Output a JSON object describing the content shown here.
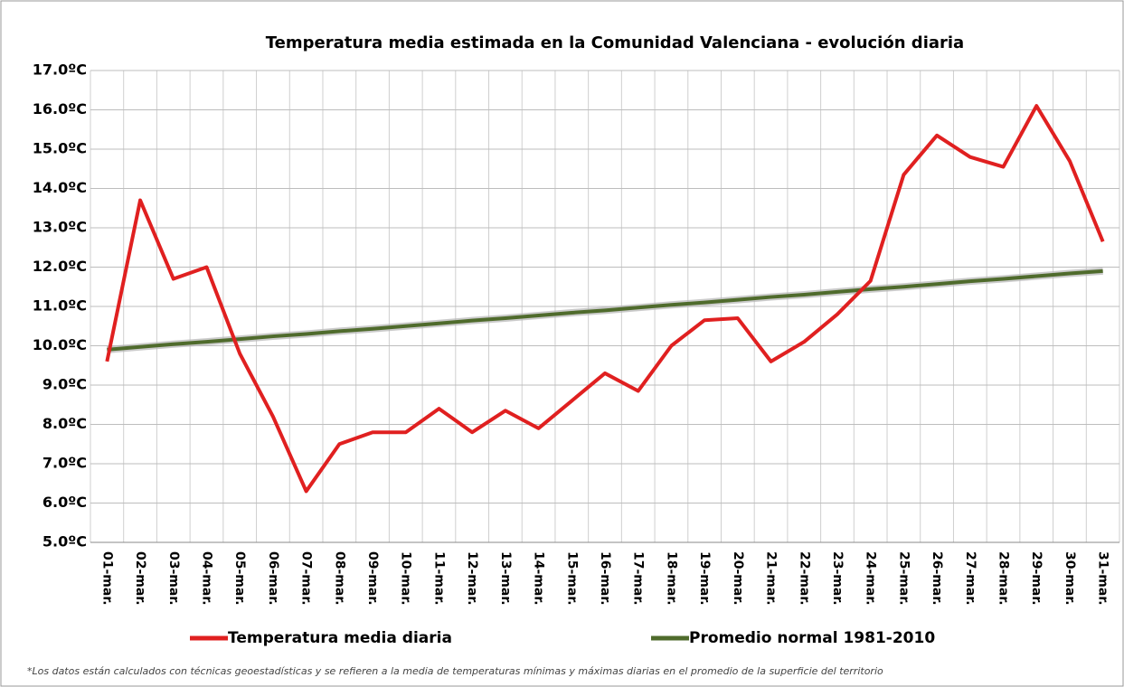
{
  "chart_data": {
    "type": "line",
    "title": "Temperatura media estimada en la Comunidad Valenciana - evolución diaria",
    "footnote": "*Los datos están calculados con técnicas geoestadísticas y se refieren a la media de temperaturas mínimas y máximas diarias en el promedio de la superficie del territorio",
    "categories": [
      "01-mar.",
      "02-mar.",
      "03-mar.",
      "04-mar.",
      "05-mar.",
      "06-mar.",
      "07-mar.",
      "08-mar.",
      "09-mar.",
      "10-mar.",
      "11-mar.",
      "12-mar.",
      "13-mar.",
      "14-mar.",
      "15-mar.",
      "16-mar.",
      "17-mar.",
      "18-mar.",
      "19-mar.",
      "20-mar.",
      "21-mar.",
      "22-mar.",
      "23-mar.",
      "24-mar.",
      "25-mar.",
      "26-mar.",
      "27-mar.",
      "28-mar.",
      "29-mar.",
      "30-mar.",
      "31-mar."
    ],
    "series": [
      {
        "name": "Temperatura media diaria",
        "color": "#e02020",
        "values": [
          9.6,
          13.7,
          11.7,
          12.0,
          9.8,
          8.2,
          6.3,
          7.5,
          7.8,
          7.8,
          8.4,
          7.8,
          8.35,
          7.9,
          8.6,
          9.3,
          8.85,
          10.0,
          10.65,
          10.7,
          9.6,
          10.1,
          10.8,
          11.65,
          14.35,
          15.35,
          14.8,
          14.55,
          16.1,
          14.7,
          12.65
        ]
      },
      {
        "name": "Promedio normal 1981-2010",
        "color": "#4f6b2c",
        "values": [
          9.9,
          9.97,
          10.04,
          10.1,
          10.17,
          10.24,
          10.3,
          10.37,
          10.43,
          10.5,
          10.57,
          10.64,
          10.7,
          10.77,
          10.84,
          10.9,
          10.97,
          11.04,
          11.1,
          11.17,
          11.24,
          11.3,
          11.37,
          11.44,
          11.5,
          11.57,
          11.64,
          11.7,
          11.77,
          11.84,
          11.9
        ]
      }
    ],
    "ylim": [
      5,
      17
    ],
    "yticks": [
      {
        "value": 5,
        "label": "5.0ºC"
      },
      {
        "value": 6,
        "label": "6.0ºC"
      },
      {
        "value": 7,
        "label": "7.0ºC"
      },
      {
        "value": 8,
        "label": "8.0ºC"
      },
      {
        "value": 9,
        "label": "9.0ºC"
      },
      {
        "value": 10,
        "label": "10.0ºC"
      },
      {
        "value": 11,
        "label": "11.0ºC"
      },
      {
        "value": 12,
        "label": "12.0ºC"
      },
      {
        "value": 13,
        "label": "13.0ºC"
      },
      {
        "value": 14,
        "label": "14.0ºC"
      },
      {
        "value": 15,
        "label": "15.0ºC"
      },
      {
        "value": 16,
        "label": "16.0ºC"
      },
      {
        "value": 17,
        "label": "17.0ºC"
      }
    ],
    "grid": true
  }
}
